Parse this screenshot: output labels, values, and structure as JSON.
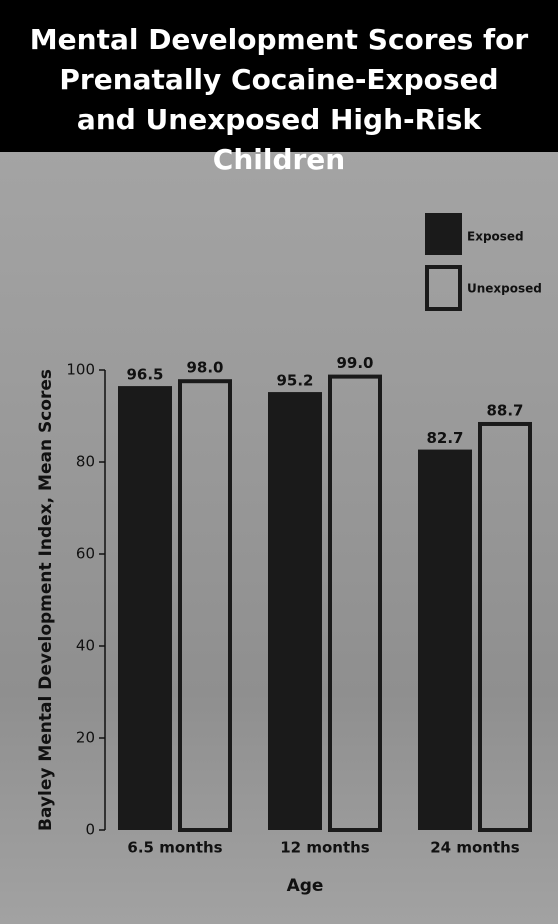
{
  "chart_data": {
    "type": "bar",
    "title": "Mental Development Scores for Prenatally Cocaine-Exposed and Unexposed High-Risk Children",
    "x_label": "Age",
    "y_label": "Bayley Mental Development Index, Mean Scores",
    "categories": [
      "6.5 months",
      "12 months",
      "24 months"
    ],
    "series": [
      {
        "name": "Exposed",
        "color": "#1a1a1a",
        "filled": true,
        "values": [
          96.5,
          95.2,
          82.7
        ]
      },
      {
        "name": "Unexposed",
        "color": "#1a1a1a",
        "filled": false,
        "values": [
          98.0,
          99.0,
          88.7
        ],
        "value_labels": [
          "98.0",
          "99.0",
          "88.7"
        ]
      }
    ],
    "ylim": [
      0,
      100
    ],
    "yticks": [
      0,
      20,
      40,
      60,
      80,
      100
    ],
    "legend": "top-right"
  }
}
